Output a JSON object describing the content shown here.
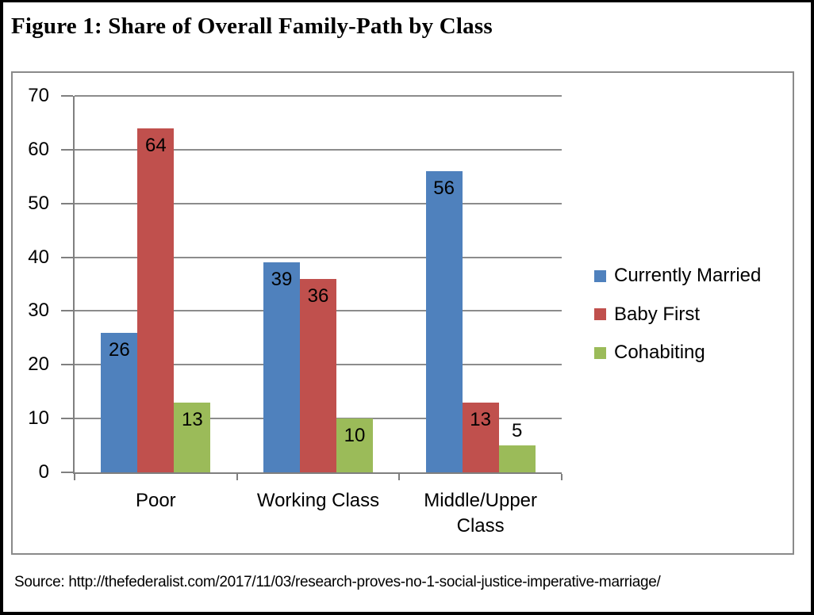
{
  "title": "Figure 1: Share of Overall Family-Path by Class",
  "source": "Source: http://thefederalist.com/2017/11/03/research-proves-no-1-social-justice-imperative-marriage/",
  "chart_data": {
    "type": "bar",
    "title": "Figure 1: Share of Overall Family-Path by Class",
    "categories": [
      "Poor",
      "Working Class",
      "Middle/Upper Class"
    ],
    "series": [
      {
        "name": "Currently Married",
        "color": "#4F81BD",
        "values": [
          26,
          39,
          56
        ]
      },
      {
        "name": "Baby First",
        "color": "#C0504D",
        "values": [
          64,
          36,
          13
        ]
      },
      {
        "name": "Cohabiting",
        "color": "#9BBB59",
        "values": [
          13,
          10,
          5
        ]
      }
    ],
    "ylim": [
      0,
      70
    ],
    "ytick_interval": 10,
    "yticklabels": [
      "0",
      "10",
      "20",
      "30",
      "40",
      "50",
      "60",
      "70"
    ],
    "grid": true,
    "data_labels": true,
    "legend_position": "right",
    "gridline_color": "#8C8C8C",
    "axis_color": "#7F7F7F",
    "label_color": "#000000"
  }
}
